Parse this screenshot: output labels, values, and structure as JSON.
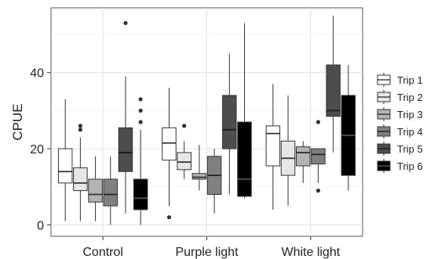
{
  "chart_data": {
    "type": "box",
    "title": "",
    "xlabel": "",
    "ylabel": "CPUE",
    "ylim": [
      -3,
      57
    ],
    "yticks": [
      0,
      20,
      40
    ],
    "grid": true,
    "legend_position": "right",
    "categories": [
      "Control",
      "Purple light",
      "White light"
    ],
    "series": [
      {
        "name": "Trip 1",
        "color": "#ffffff",
        "median_color": "#333333",
        "boxes": [
          {
            "category": "Control",
            "q1": 11,
            "median": 14,
            "q3": 20,
            "whisker_low": 1,
            "whisker_high": 33,
            "outliers": []
          },
          {
            "category": "Purple light",
            "q1": 17,
            "median": 21.5,
            "q3": 25.5,
            "whisker_low": 5,
            "whisker_high": 36,
            "outliers": [
              2
            ]
          },
          {
            "category": "White light",
            "q1": 15.5,
            "median": 24,
            "q3": 26,
            "whisker_low": 4,
            "whisker_high": 37,
            "outliers": []
          }
        ]
      },
      {
        "name": "Trip 2",
        "color": "#e6e6e6",
        "median_color": "#333333",
        "boxes": [
          {
            "category": "Control",
            "q1": 9,
            "median": 11,
            "q3": 15,
            "whisker_low": 1,
            "whisker_high": 23,
            "outliers": [
              25,
              26
            ]
          },
          {
            "category": "Purple light",
            "q1": 14.5,
            "median": 16.5,
            "q3": 19,
            "whisker_low": 12,
            "whisker_high": 22,
            "outliers": [
              26
            ]
          },
          {
            "category": "White light",
            "q1": 13,
            "median": 17.5,
            "q3": 22,
            "whisker_low": 5,
            "whisker_high": 34,
            "outliers": []
          }
        ]
      },
      {
        "name": "Trip 3",
        "color": "#b3b3b3",
        "median_color": "#333333",
        "boxes": [
          {
            "category": "Control",
            "q1": 6,
            "median": 8,
            "q3": 12,
            "whisker_low": 1,
            "whisker_high": 18,
            "outliers": []
          },
          {
            "category": "Purple light",
            "q1": 12,
            "median": 12.5,
            "q3": 13.5,
            "whisker_low": 9,
            "whisker_high": 21,
            "outliers": []
          },
          {
            "category": "White light",
            "q1": 15.5,
            "median": 19,
            "q3": 20.5,
            "whisker_low": 11,
            "whisker_high": 22,
            "outliers": []
          }
        ]
      },
      {
        "name": "Trip 4",
        "color": "#808080",
        "median_color": "#222222",
        "boxes": [
          {
            "category": "Control",
            "q1": 5,
            "median": 8,
            "q3": 12,
            "whisker_low": 0,
            "whisker_high": 18,
            "outliers": []
          },
          {
            "category": "Purple light",
            "q1": 8,
            "median": 13,
            "q3": 18,
            "whisker_low": 3,
            "whisker_high": 20,
            "outliers": []
          },
          {
            "category": "White light",
            "q1": 16,
            "median": 18.5,
            "q3": 20,
            "whisker_low": 11,
            "whisker_high": 20,
            "outliers": [
              9,
              27
            ]
          }
        ]
      },
      {
        "name": "Trip 5",
        "color": "#4d4d4d",
        "median_color": "#1a1a1a",
        "boxes": [
          {
            "category": "Control",
            "q1": 14,
            "median": 19,
            "q3": 25.5,
            "whisker_low": 3,
            "whisker_high": 39,
            "outliers": [
              53
            ]
          },
          {
            "category": "Purple light",
            "q1": 20,
            "median": 25,
            "q3": 34,
            "whisker_low": 8,
            "whisker_high": 45,
            "outliers": []
          },
          {
            "category": "White light",
            "q1": 28.5,
            "median": 30,
            "q3": 42,
            "whisker_low": 19,
            "whisker_high": 55,
            "outliers": []
          }
        ]
      },
      {
        "name": "Trip 6",
        "color": "#000000",
        "median_color": "#555555",
        "boxes": [
          {
            "category": "Control",
            "q1": 4,
            "median": 7,
            "q3": 12,
            "whisker_low": 0,
            "whisker_high": 25,
            "outliers": [
              27,
              30,
              33
            ]
          },
          {
            "category": "Purple light",
            "q1": 7.5,
            "median": 12,
            "q3": 27,
            "whisker_low": 7,
            "whisker_high": 53,
            "outliers": []
          },
          {
            "category": "White light",
            "q1": 13,
            "median": 23.5,
            "q3": 34,
            "whisker_low": 9,
            "whisker_high": 42,
            "outliers": []
          }
        ]
      }
    ]
  }
}
